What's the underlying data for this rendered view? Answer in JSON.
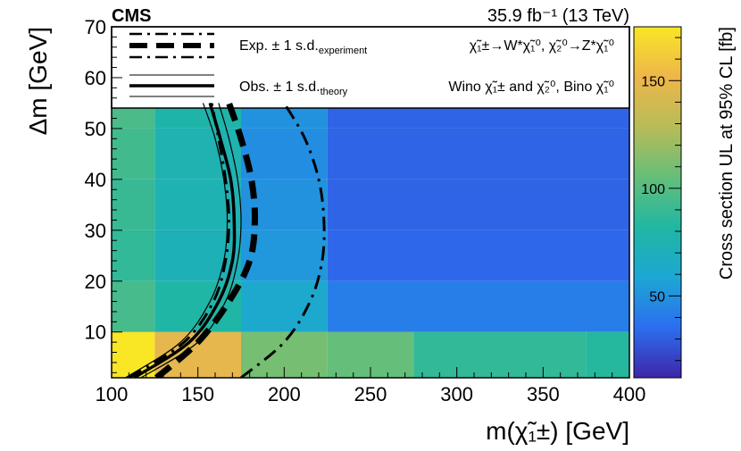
{
  "header": {
    "experiment": "CMS",
    "luminosity": "35.9 fb⁻¹ (13 TeV)"
  },
  "chart_data": {
    "type": "heatmap",
    "xlabel": "m(χ̃₁±) [GeV]",
    "ylabel": "Δm [GeV]",
    "zlabel": "Cross section UL at 95% CL [fb]",
    "xlim": [
      100,
      400
    ],
    "ylim": [
      1,
      70
    ],
    "zlim": [
      12,
      175
    ],
    "xticks": [
      100,
      150,
      200,
      250,
      300,
      350,
      400
    ],
    "yticks": [
      10,
      20,
      30,
      40,
      50,
      60,
      70
    ],
    "zticks": [
      50,
      100,
      150
    ],
    "grid": false,
    "legend_position": "top",
    "cells": [
      {
        "x": [
          100,
          125
        ],
        "y": [
          1,
          10
        ],
        "z": 175
      },
      {
        "x": [
          125,
          175
        ],
        "y": [
          1,
          10
        ],
        "z": 148
      },
      {
        "x": [
          175,
          225
        ],
        "y": [
          1,
          10
        ],
        "z": 110
      },
      {
        "x": [
          225,
          275
        ],
        "y": [
          1,
          10
        ],
        "z": 105
      },
      {
        "x": [
          275,
          375
        ],
        "y": [
          1,
          10
        ],
        "z": 88
      },
      {
        "x": [
          375,
          400
        ],
        "y": [
          1,
          10
        ],
        "z": 84
      },
      {
        "x": [
          100,
          125
        ],
        "y": [
          10,
          20
        ],
        "z": 95
      },
      {
        "x": [
          125,
          175
        ],
        "y": [
          10,
          20
        ],
        "z": 80
      },
      {
        "x": [
          175,
          225
        ],
        "y": [
          10,
          20
        ],
        "z": 62
      },
      {
        "x": [
          225,
          400
        ],
        "y": [
          10,
          20
        ],
        "z": 42
      },
      {
        "x": [
          100,
          125
        ],
        "y": [
          20,
          30
        ],
        "z": 88
      },
      {
        "x": [
          125,
          175
        ],
        "y": [
          20,
          30
        ],
        "z": 72
      },
      {
        "x": [
          175,
          225
        ],
        "y": [
          20,
          30
        ],
        "z": 52
      },
      {
        "x": [
          225,
          400
        ],
        "y": [
          20,
          30
        ],
        "z": 33
      },
      {
        "x": [
          100,
          125
        ],
        "y": [
          30,
          40
        ],
        "z": 90
      },
      {
        "x": [
          125,
          175
        ],
        "y": [
          30,
          40
        ],
        "z": 74
      },
      {
        "x": [
          175,
          225
        ],
        "y": [
          30,
          40
        ],
        "z": 50
      },
      {
        "x": [
          225,
          400
        ],
        "y": [
          30,
          40
        ],
        "z": 32
      },
      {
        "x": [
          100,
          125
        ],
        "y": [
          40,
          50
        ],
        "z": 93
      },
      {
        "x": [
          125,
          175
        ],
        "y": [
          40,
          50
        ],
        "z": 75
      },
      {
        "x": [
          175,
          225
        ],
        "y": [
          40,
          50
        ],
        "z": 48
      },
      {
        "x": [
          225,
          400
        ],
        "y": [
          40,
          50
        ],
        "z": 32
      },
      {
        "x": [
          100,
          125
        ],
        "y": [
          50,
          55
        ],
        "z": 96
      },
      {
        "x": [
          125,
          175
        ],
        "y": [
          50,
          55
        ],
        "z": 78
      },
      {
        "x": [
          175,
          225
        ],
        "y": [
          50,
          55
        ],
        "z": 50
      },
      {
        "x": [
          225,
          400
        ],
        "y": [
          50,
          55
        ],
        "z": 32
      }
    ],
    "contours": [
      {
        "name": "Exp.",
        "style": "expected-central",
        "points": [
          [
            126,
            1
          ],
          [
            150,
            8
          ],
          [
            168,
            16
          ],
          [
            180,
            24
          ],
          [
            183,
            32
          ],
          [
            181,
            40
          ],
          [
            175,
            48
          ],
          [
            168,
            55
          ]
        ]
      },
      {
        "name": "Exp. +1 s.d. experiment",
        "style": "expected-band",
        "points": [
          [
            175,
            1
          ],
          [
            200,
            8
          ],
          [
            215,
            16
          ],
          [
            222,
            24
          ],
          [
            223,
            32
          ],
          [
            220,
            40
          ],
          [
            212,
            48
          ],
          [
            200,
            55
          ]
        ]
      },
      {
        "name": "Exp. -1 s.d. experiment",
        "style": "expected-band",
        "points": [
          [
            110,
            1
          ],
          [
            142,
            8
          ],
          [
            159,
            16
          ],
          [
            166,
            24
          ],
          [
            168,
            32
          ],
          [
            166,
            40
          ],
          [
            162,
            48
          ],
          [
            158,
            55
          ]
        ]
      },
      {
        "name": "Obs.",
        "style": "observed-central",
        "points": [
          [
            113,
            1
          ],
          [
            145,
            8
          ],
          [
            162,
            16
          ],
          [
            170,
            24
          ],
          [
            171,
            32
          ],
          [
            169,
            40
          ],
          [
            163,
            48
          ],
          [
            157,
            55
          ]
        ]
      },
      {
        "name": "Obs. +1 s.d. theory",
        "style": "observed-band",
        "points": [
          [
            117,
            1
          ],
          [
            150,
            8
          ],
          [
            166,
            16
          ],
          [
            173,
            24
          ],
          [
            175,
            32
          ],
          [
            173,
            40
          ],
          [
            168,
            48
          ],
          [
            162,
            55
          ]
        ]
      },
      {
        "name": "Obs. -1 s.d. theory",
        "style": "observed-band",
        "points": [
          [
            108,
            1
          ],
          [
            140,
            8
          ],
          [
            157,
            16
          ],
          [
            165,
            24
          ],
          [
            167,
            32
          ],
          [
            165,
            40
          ],
          [
            160,
            48
          ],
          [
            153,
            55
          ]
        ]
      }
    ],
    "colormap": [
      "#3e26a8",
      "#2c6ef0",
      "#1ca7d4",
      "#20b7a2",
      "#65be79",
      "#b8bc58",
      "#eeb64a",
      "#f9e625"
    ]
  },
  "legend": {
    "exp_label": "Exp. ± 1 s.d.",
    "exp_subscript": "experiment",
    "obs_label": "Obs. ± 1 s.d.",
    "obs_subscript": "theory",
    "process_line": "χ̃₁±→W*χ̃₁⁰, χ̃₂⁰→Z*χ̃₁⁰",
    "model_line": "Wino χ̃₁± and χ̃₂⁰, Bino χ̃₁⁰"
  }
}
